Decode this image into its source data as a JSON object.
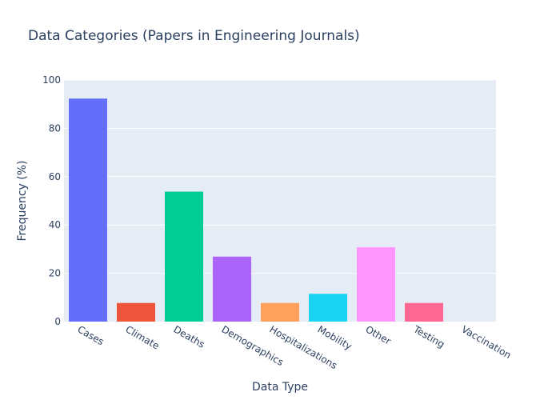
{
  "chart_data": {
    "type": "bar",
    "title": "Data Categories (Papers in Engineering Journals)",
    "xlabel": "Data Type",
    "ylabel": "Frequency (%)",
    "ylim": [
      0,
      100
    ],
    "yticks": [
      0,
      20,
      40,
      60,
      80,
      100
    ],
    "grid": true,
    "categories": [
      "Cases",
      "Climate",
      "Deaths",
      "Demographics",
      "Hospitalizations",
      "Mobility",
      "Other",
      "Testing",
      "Vaccination"
    ],
    "values": [
      92.3,
      7.7,
      53.8,
      26.9,
      7.7,
      11.5,
      30.8,
      7.7,
      0
    ],
    "colors": [
      "#636efa",
      "#ef553b",
      "#00cc96",
      "#ab63fa",
      "#ffa15a",
      "#19d3f3",
      "#ff97ff",
      "#ff6692",
      "#b6e880"
    ],
    "background": "#e5ecf6"
  }
}
